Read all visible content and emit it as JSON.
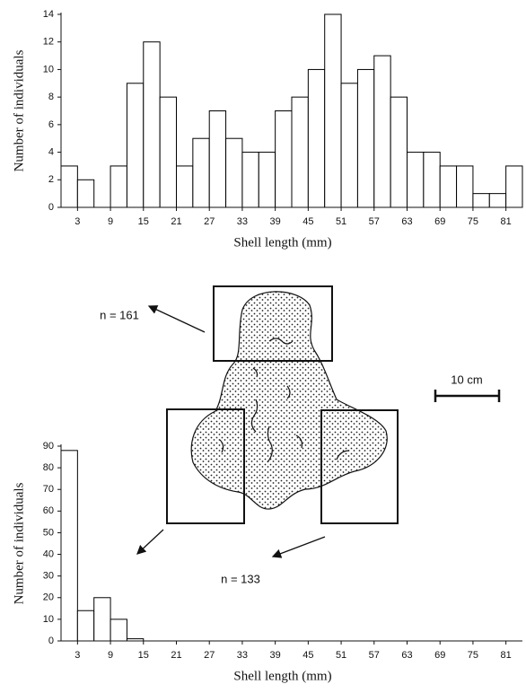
{
  "chart_data": [
    {
      "type": "histogram",
      "xlabel": "Shell length (mm)",
      "ylabel": "Number of individuals",
      "annotation": "n = 161",
      "bins": [
        0,
        3,
        6,
        9,
        12,
        15,
        18,
        21,
        24,
        27,
        30,
        33,
        36,
        39,
        42,
        45,
        48,
        51,
        54,
        57,
        60,
        63,
        66,
        69,
        72,
        75,
        78,
        81,
        84
      ],
      "counts": [
        3,
        2,
        0,
        3,
        9,
        12,
        8,
        3,
        5,
        7,
        5,
        4,
        4,
        7,
        8,
        10,
        14,
        9,
        10,
        11,
        8,
        4,
        4,
        3,
        3,
        1,
        1,
        3
      ],
      "color": "#ffffff",
      "edgecolor": "#000000",
      "xlim": [
        0,
        84
      ],
      "xticks": [
        3,
        9,
        15,
        21,
        27,
        33,
        39,
        45,
        51,
        57,
        63,
        69,
        75,
        81
      ],
      "ylim": [
        0,
        14
      ],
      "yticks": [
        0,
        2,
        4,
        6,
        8,
        10,
        12,
        14
      ]
    },
    {
      "type": "histogram",
      "xlabel": "Shell length (mm)",
      "ylabel": "Number of individuals",
      "annotation": "n = 133",
      "bins": [
        0,
        3,
        6,
        9,
        12,
        15,
        18,
        21,
        24,
        27,
        30,
        33,
        36,
        39,
        42,
        45,
        48,
        51,
        54,
        57,
        60,
        63,
        66,
        69,
        72,
        75,
        78,
        81,
        84
      ],
      "counts": [
        88,
        14,
        20,
        10,
        1,
        0,
        0,
        0,
        0,
        0,
        0,
        0,
        0,
        0,
        0,
        0,
        0,
        0,
        0,
        0,
        0,
        0,
        0,
        0,
        0,
        0,
        0,
        0
      ],
      "color": "#ffffff",
      "edgecolor": "#000000",
      "xlim": [
        0,
        84
      ],
      "xticks": [
        3,
        9,
        15,
        21,
        27,
        33,
        39,
        45,
        51,
        57,
        63,
        69,
        75,
        81
      ],
      "ylim": [
        0,
        90
      ],
      "yticks": [
        0,
        10,
        20,
        30,
        40,
        50,
        60,
        70,
        80,
        90
      ]
    }
  ],
  "diagram": {
    "scale_label": "10 cm"
  }
}
